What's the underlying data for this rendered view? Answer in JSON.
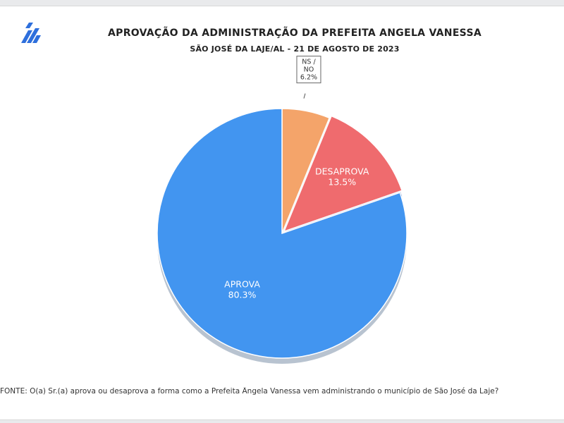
{
  "title": "APROVAÇÃO DA ADMINISTRAÇÃO DA PREFEITA ANGELA VANESSA",
  "subtitle": "SÃO JOSÉ DA LAJE/AL - 21 DE AGOSTO DE 2023",
  "source": "FONTE: O(a) Sr.(a) aprova ou desaprova a forma como a Prefeita Ângela Vanessa vem administrando o município de São José da Laje?",
  "logo_icon": "stripes-logo-icon",
  "chart_data": {
    "type": "pie",
    "start_angle_deg": 0,
    "direction": "clockwise",
    "exploded_slice": "DESAPROVA",
    "slices": [
      {
        "name": "NS / NO",
        "value": 6.2,
        "label": "6.2%",
        "color": "#f4a46a",
        "text_color": "#333333"
      },
      {
        "name": "DESAPROVA",
        "value": 13.5,
        "label": "13.5%",
        "color": "#ef6b6e",
        "text_color": "#ffffff"
      },
      {
        "name": "APROVA",
        "value": 80.3,
        "label": "80.3%",
        "color": "#4295f0",
        "text_color": "#ffffff"
      }
    ]
  }
}
